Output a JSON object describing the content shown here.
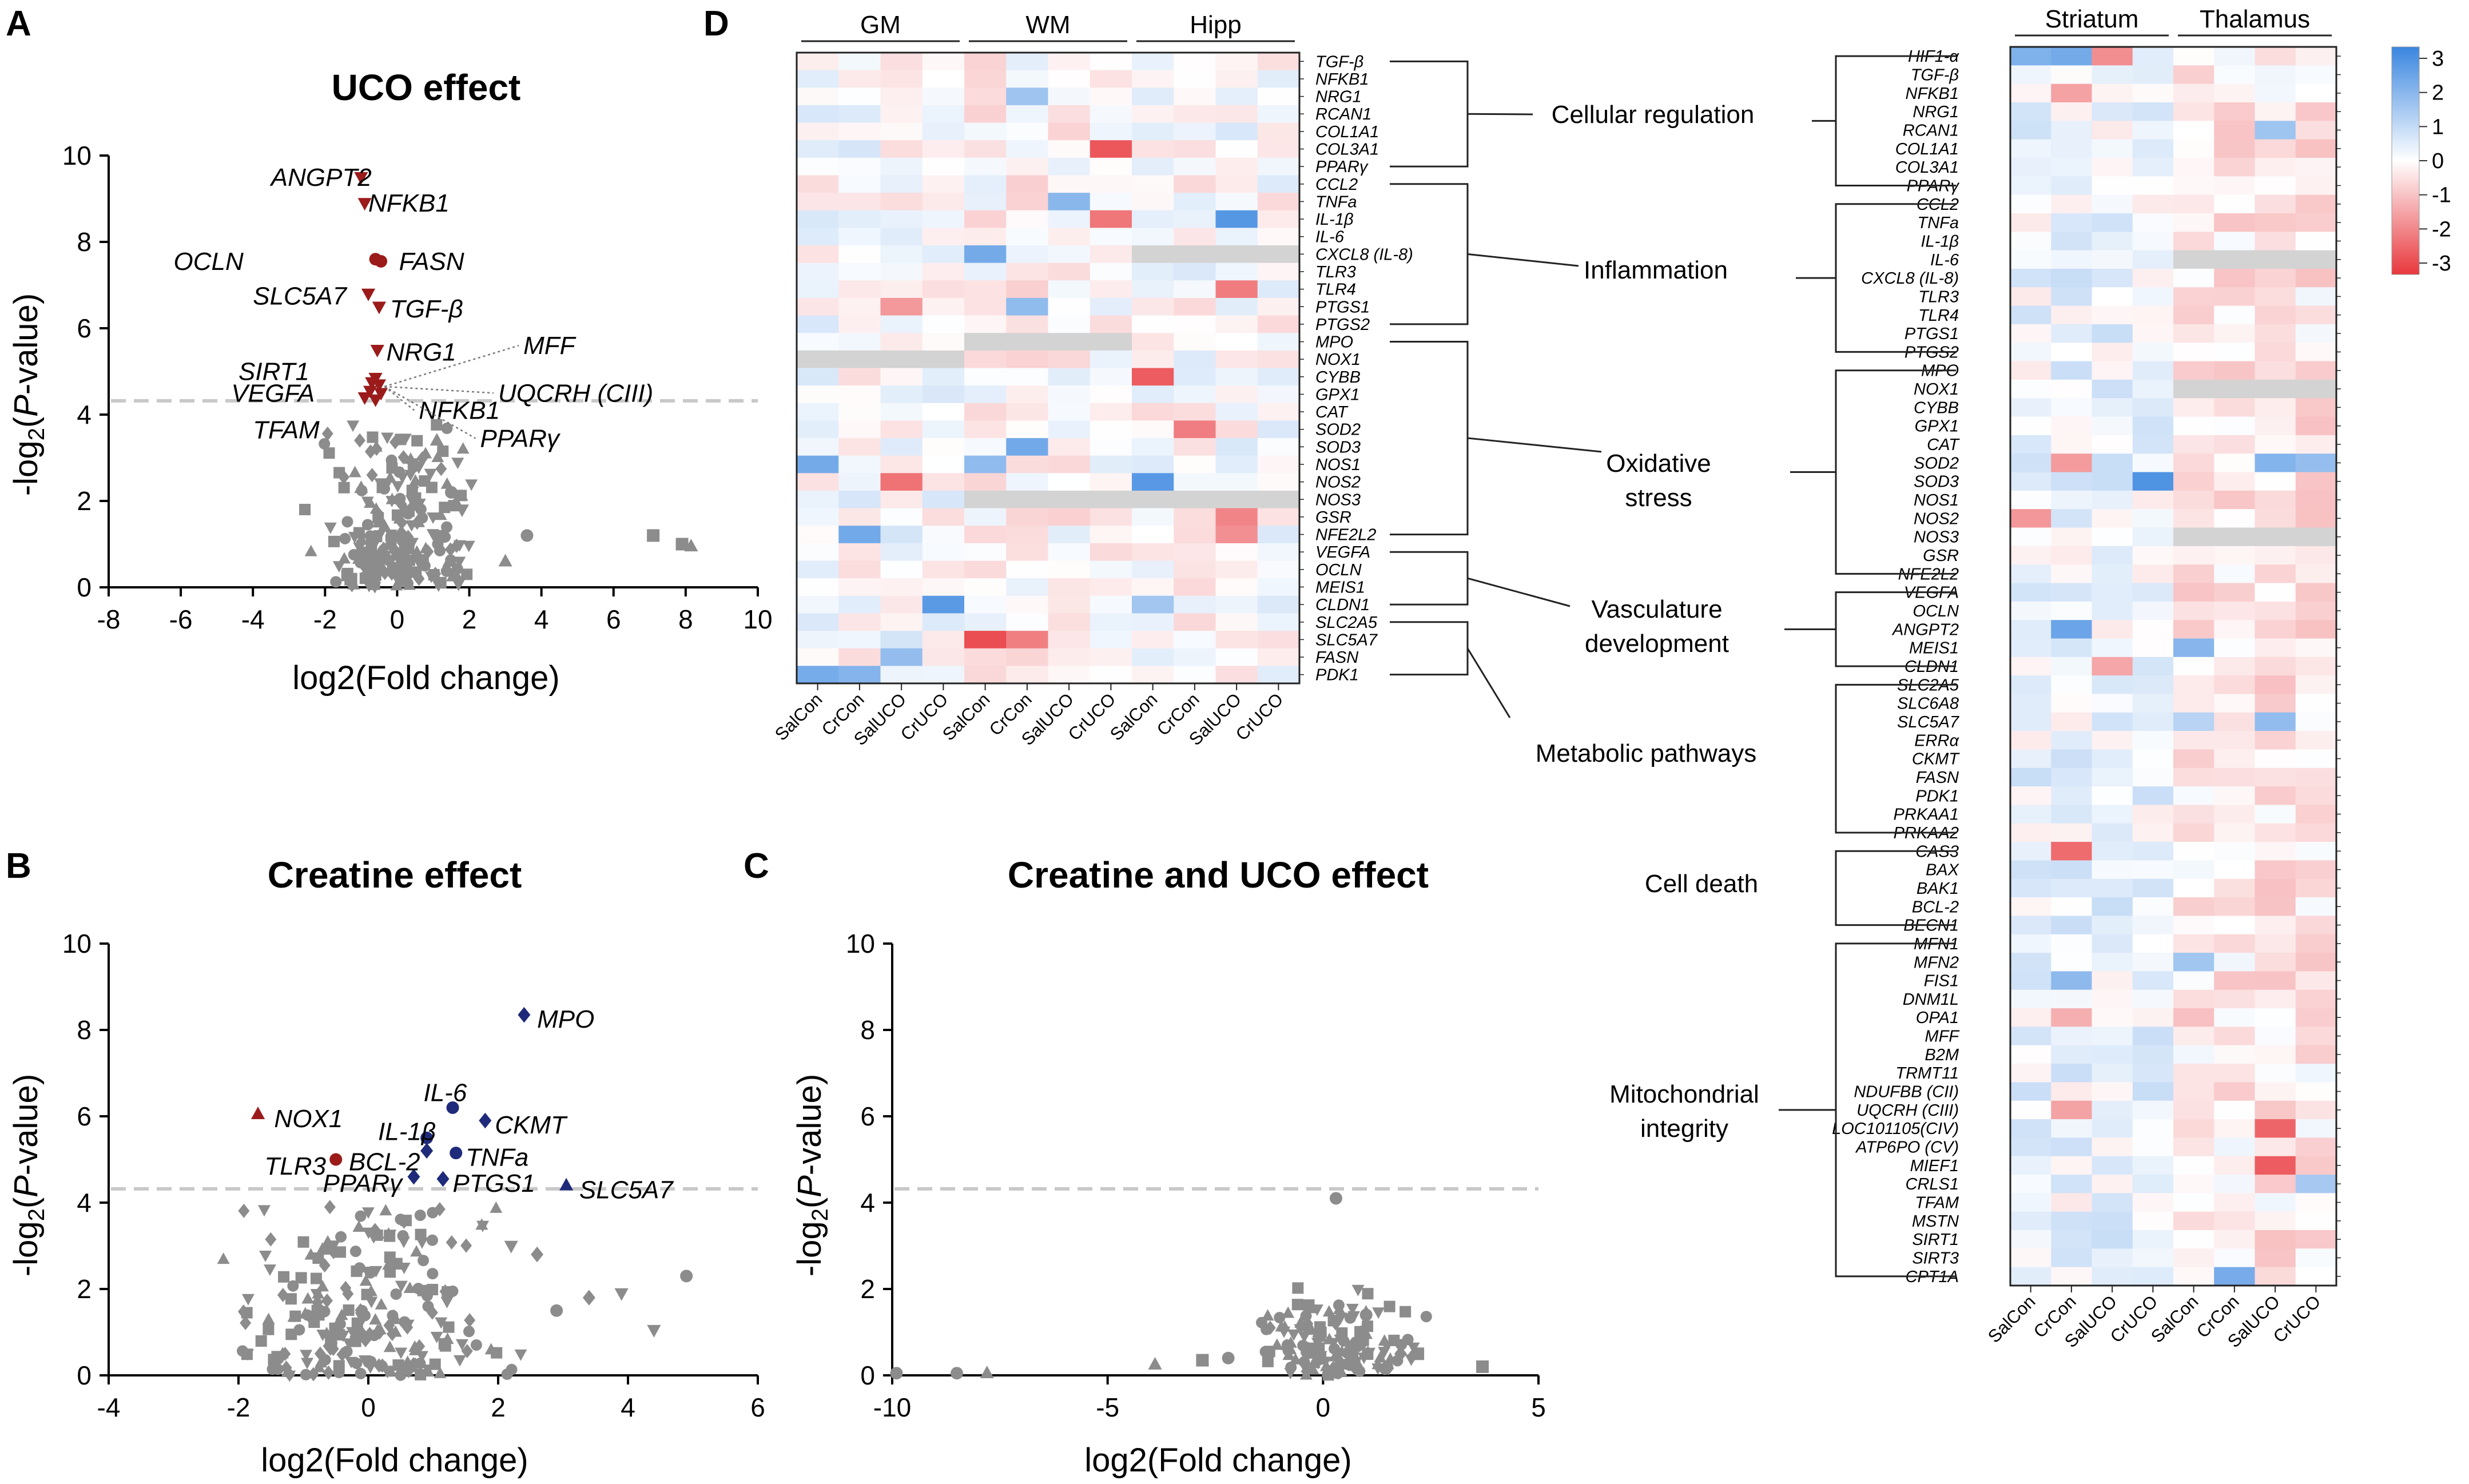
{
  "panels": {
    "A": {
      "label": "A",
      "title": "UCO effect",
      "xlabel": "log2(Fold change)",
      "ylabel_pre": "-log",
      "ylabel_sub": "2",
      "ylabel_mid": "(",
      "ylabel_p": "P",
      "ylabel_post": "-value)"
    },
    "B": {
      "label": "B",
      "title": "Creatine effect",
      "xlabel": "log2(Fold change)",
      "ylabel_pre": "-log",
      "ylabel_sub": "2",
      "ylabel_mid": "(",
      "ylabel_p": "P",
      "ylabel_post": "-value)"
    },
    "C": {
      "label": "C",
      "title": "Creatine and UCO effect",
      "xlabel": "log2(Fold change)",
      "ylabel_pre": "-log",
      "ylabel_sub": "2",
      "ylabel_mid": "(",
      "ylabel_p": "P",
      "ylabel_post": "-value)"
    },
    "D": {
      "label": "D"
    }
  },
  "colors": {
    "up": "#9b1b1b",
    "creat": "#1f2a7a",
    "gray": "#8c8c8c",
    "thresh": "#c8c8c8",
    "nan": "#d3d3d3",
    "neg": "#e8383d",
    "pos": "#3a86e0"
  },
  "chart_data": [
    {
      "id": "A",
      "type": "scatter",
      "title": "UCO effect",
      "xlabel": "log2(Fold change)",
      "ylabel": "-log2(P-value)",
      "xlim": [
        -8,
        10
      ],
      "ylim": [
        0,
        10
      ],
      "xticks": [
        "-8",
        "-6",
        "-4",
        "-2",
        "0",
        "2",
        "4",
        "6",
        "8",
        "10"
      ],
      "yticks": [
        "0",
        "2",
        "4",
        "6",
        "8",
        "10"
      ],
      "threshold": 4.32,
      "highlighted": [
        {
          "label": "ANGPT2",
          "x": -1.0,
          "y": 9.5,
          "shape": "tri-down"
        },
        {
          "label": "NFKB1",
          "x": -0.9,
          "y": 8.9,
          "shape": "tri-down"
        },
        {
          "label": "OCLN",
          "x": -0.6,
          "y": 7.6,
          "shape": "circle"
        },
        {
          "label": "FASN",
          "x": -0.45,
          "y": 7.55,
          "shape": "circle"
        },
        {
          "label": "SLC5A7",
          "x": -0.8,
          "y": 6.8,
          "shape": "tri-down"
        },
        {
          "label": "TGF-β",
          "x": -0.5,
          "y": 6.5,
          "shape": "tri-down"
        },
        {
          "label": "NRG1",
          "x": -0.55,
          "y": 5.5,
          "shape": "tri-down"
        },
        {
          "label": "MFF",
          "x": -0.6,
          "y": 4.85,
          "shape": "tri-down"
        },
        {
          "label": "SIRT1",
          "x": -0.7,
          "y": 4.75,
          "shape": "tri-down"
        },
        {
          "label": "UQCRH (CIII)",
          "x": -0.5,
          "y": 4.7,
          "shape": "tri-down"
        },
        {
          "label": "VEGFA",
          "x": -0.75,
          "y": 4.55,
          "shape": "tri-down"
        },
        {
          "label": "NFKB1",
          "x": -0.45,
          "y": 4.5,
          "shape": "tri-down"
        },
        {
          "label": "TFAM",
          "x": -0.9,
          "y": 4.4,
          "shape": "tri-down"
        },
        {
          "label": "PPARγ",
          "x": -0.6,
          "y": 4.35,
          "shape": "tri-down"
        }
      ],
      "labels": [
        {
          "text": "ANGPT2",
          "ax": -3.5,
          "ay": 9.5,
          "anchor": "start",
          "lead": false
        },
        {
          "text": "NFKB1",
          "ax": -0.8,
          "ay": 8.9,
          "anchor": "start",
          "lead": false
        },
        {
          "text": "OCLN",
          "ax": -6.2,
          "ay": 7.55,
          "anchor": "start",
          "lead": false
        },
        {
          "text": "FASN",
          "ax": 0.05,
          "ay": 7.55,
          "anchor": "start",
          "lead": false
        },
        {
          "text": "SLC5A7",
          "ax": -4.0,
          "ay": 6.75,
          "anchor": "start",
          "lead": false
        },
        {
          "text": "TGF-β",
          "ax": -0.2,
          "ay": 6.45,
          "anchor": "start",
          "lead": false
        },
        {
          "text": "NRG1",
          "ax": -0.3,
          "ay": 5.45,
          "anchor": "start",
          "lead": false
        },
        {
          "text": "MFF",
          "ax": 3.5,
          "ay": 5.6,
          "anchor": "start",
          "lead": true
        },
        {
          "text": "SIRT1",
          "ax": -4.4,
          "ay": 5.0,
          "anchor": "start",
          "lead": false
        },
        {
          "text": "UQCRH (CIII)",
          "ax": 2.8,
          "ay": 4.5,
          "anchor": "start",
          "lead": true
        },
        {
          "text": "VEGFA",
          "ax": -4.6,
          "ay": 4.5,
          "anchor": "start",
          "lead": false
        },
        {
          "text": "NFKB1",
          "ax": 0.6,
          "ay": 4.1,
          "anchor": "start",
          "lead": true
        },
        {
          "text": "TFAM",
          "ax": -4.0,
          "ay": 3.65,
          "anchor": "start",
          "lead": false
        },
        {
          "text": "PPARγ",
          "ax": 2.3,
          "ay": 3.45,
          "anchor": "start",
          "lead": true
        }
      ],
      "background": [
        [
          7.1,
          1.2
        ],
        [
          7.9,
          1.0
        ],
        [
          8.15,
          0.95
        ],
        [
          3.0,
          0.6
        ],
        [
          3.6,
          1.2
        ],
        [
          1.8,
          1.8
        ],
        [
          1.5,
          2.2
        ],
        [
          1.1,
          3.4
        ],
        [
          -1.0,
          2.3
        ],
        [
          0.6,
          2.8
        ]
      ]
    },
    {
      "id": "B",
      "type": "scatter",
      "title": "Creatine effect",
      "xlabel": "log2(Fold change)",
      "ylabel": "-log2(P-value)",
      "xlim": [
        -4,
        6
      ],
      "ylim": [
        0,
        10
      ],
      "xticks": [
        "-4",
        "-2",
        "0",
        "2",
        "4",
        "6"
      ],
      "yticks": [
        "0",
        "2",
        "4",
        "6",
        "8",
        "10"
      ],
      "threshold": 4.32,
      "highlighted": [
        {
          "label": "MPO",
          "x": 2.4,
          "y": 8.35,
          "shape": "diamond",
          "group": "creat"
        },
        {
          "label": "NOX1",
          "x": -1.7,
          "y": 6.05,
          "shape": "tri-up",
          "group": "up"
        },
        {
          "label": "IL-6",
          "x": 1.3,
          "y": 6.2,
          "shape": "circle",
          "group": "creat"
        },
        {
          "label": "CKMT",
          "x": 1.8,
          "y": 5.9,
          "shape": "diamond",
          "group": "creat"
        },
        {
          "label": "IL-1β",
          "x": 0.9,
          "y": 5.5,
          "shape": "circle",
          "group": "creat"
        },
        {
          "label": "TLR3",
          "x": -0.5,
          "y": 5.0,
          "shape": "circle",
          "group": "up"
        },
        {
          "label": "BCL-2",
          "x": 0.9,
          "y": 5.2,
          "shape": "diamond",
          "group": "creat"
        },
        {
          "label": "TNFa",
          "x": 1.35,
          "y": 5.15,
          "shape": "circle",
          "group": "creat"
        },
        {
          "label": "PPARγ",
          "x": 0.7,
          "y": 4.6,
          "shape": "diamond",
          "group": "creat"
        },
        {
          "label": "PTGS1",
          "x": 1.15,
          "y": 4.55,
          "shape": "diamond",
          "group": "creat"
        },
        {
          "label": "SLC5A7",
          "x": 3.05,
          "y": 4.4,
          "shape": "tri-up",
          "group": "creat"
        }
      ],
      "labels": [
        {
          "text": "MPO",
          "ax": 2.6,
          "ay": 8.25
        },
        {
          "text": "NOX1",
          "ax": -1.45,
          "ay": 5.95
        },
        {
          "text": "IL-6",
          "ax": 0.85,
          "ay": 6.55
        },
        {
          "text": "CKMT",
          "ax": 1.95,
          "ay": 5.8
        },
        {
          "text": "IL-1β",
          "ax": 0.15,
          "ay": 5.65
        },
        {
          "text": "TLR3",
          "ax": -1.6,
          "ay": 4.85
        },
        {
          "text": "BCL-2",
          "ax": -0.3,
          "ay": 4.95
        },
        {
          "text": "TNFa",
          "ax": 1.5,
          "ay": 5.05
        },
        {
          "text": "PPARγ",
          "ax": -0.7,
          "ay": 4.45
        },
        {
          "text": "PTGS1",
          "ax": 1.3,
          "ay": 4.45
        },
        {
          "text": "SLC5A7",
          "ax": 3.25,
          "ay": 4.3
        }
      ],
      "background": [
        [
          4.4,
          1.05
        ],
        [
          4.9,
          2.3
        ],
        [
          3.9,
          1.9
        ],
        [
          3.4,
          1.8
        ],
        [
          2.9,
          1.5
        ],
        [
          2.6,
          2.8
        ],
        [
          2.2,
          3.0
        ]
      ]
    },
    {
      "id": "C",
      "type": "scatter",
      "title": "Creatine and UCO effect",
      "xlabel": "log2(Fold change)",
      "ylabel": "-log2(P-value)",
      "xlim": [
        -10,
        5
      ],
      "ylim": [
        0,
        10
      ],
      "xticks": [
        "-10",
        "-5",
        "0",
        "5"
      ],
      "yticks": [
        "0",
        "2",
        "4",
        "6",
        "8",
        "10"
      ],
      "threshold": 4.32,
      "highlighted": [],
      "background": [
        [
          -9.9,
          0.05
        ],
        [
          -8.5,
          0.05
        ],
        [
          -7.8,
          0.05
        ],
        [
          -3.9,
          0.25
        ],
        [
          -2.2,
          0.4
        ],
        [
          -2.8,
          0.35
        ],
        [
          3.7,
          0.2
        ],
        [
          2.2,
          0.5
        ],
        [
          1.8,
          0.5
        ],
        [
          0.3,
          4.1
        ],
        [
          1.0,
          1.4
        ]
      ]
    },
    {
      "id": "D",
      "type": "heatmap",
      "colorscale": {
        "min": -3,
        "max": 3,
        "ticks": [
          "3",
          "2",
          "1",
          "0",
          "-1",
          "-2",
          "-3"
        ]
      },
      "heatmap1": {
        "regions": [
          "GM",
          "WM",
          "Hipp"
        ],
        "columns": [
          "SalCon",
          "CrCon",
          "SalUCO",
          "CrUCO",
          "SalCon",
          "CrCon",
          "SalUCO",
          "CrUCO",
          "SalCon",
          "CrCon",
          "SalUCO",
          "CrUCO"
        ],
        "genes": [
          "TGF-β",
          "NFKB1",
          "NRG1",
          "RCAN1",
          "COL1A1",
          "COL3A1",
          "PPARγ",
          "CCL2",
          "TNFa",
          "IL-1β",
          "IL-6",
          "CXCL8 (IL-8)",
          "TLR3",
          "TLR4",
          "PTGS1",
          "PTGS2",
          "MPO",
          "NOX1",
          "CYBB",
          "GPX1",
          "CAT",
          "SOD2",
          "SOD3",
          "NOS1",
          "NOS2",
          "NOS3",
          "GSR",
          "NFE2L2",
          "VEGFA",
          "OCLN",
          "MEIS1",
          "CLDN1",
          "SLC2A5",
          "SLC5A7",
          "FASN",
          "PDK1"
        ],
        "categories": [
          {
            "name": "Cellular regulation",
            "from": "TGF-β",
            "to": "PPARγ"
          },
          {
            "name": "Inflammation",
            "from": "CCL2",
            "to": "PTGS2"
          },
          {
            "name": "Oxidative stress",
            "from": "MPO",
            "to": "NFE2L2"
          },
          {
            "name": "Vasculature development",
            "from": "VEGFA",
            "to": "CLDN1"
          },
          {
            "name": "Metabolic pathways",
            "from": "SLC2A5",
            "to": "PDK1"
          }
        ]
      },
      "heatmap2": {
        "regions": [
          "Striatum",
          "Thalamus"
        ],
        "columns": [
          "SalCon",
          "CrCon",
          "SalUCO",
          "CrUCO",
          "SalCon",
          "CrCon",
          "SalUCO",
          "CrUCO"
        ],
        "genes": [
          "HIF1-α",
          "TGF-β",
          "NFKB1",
          "NRG1",
          "RCAN1",
          "COL1A1",
          "COL3A1",
          "PPARγ",
          "CCL2",
          "TNFa",
          "IL-1β",
          "IL-6",
          "CXCL8 (IL-8)",
          "TLR3",
          "TLR4",
          "PTGS1",
          "PTGS2",
          "MPO",
          "NOX1",
          "CYBB",
          "GPX1",
          "CAT",
          "SOD2",
          "SOD3",
          "NOS1",
          "NOS2",
          "NOS3",
          "GSR",
          "NFE2L2",
          "VEGFA",
          "OCLN",
          "ANGPT2",
          "MEIS1",
          "CLDN1",
          "SLC2A5",
          "SLC6A8",
          "SLC5A7",
          "ERRα",
          "CKMT",
          "FASN",
          "PDK1",
          "PRKAA1",
          "PRKAA2",
          "CAS3",
          "BAX",
          "BAK1",
          "BCL-2",
          "BECN1",
          "MFN1",
          "MFN2",
          "FIS1",
          "DNM1L",
          "OPA1",
          "MFF",
          "B2M",
          "TRMT11",
          "NDUFBB (CII)",
          "UQCRH (CIII)",
          "LOC101105(CIV)",
          "ATP6PO (CV)",
          "MIEF1",
          "CRLS1",
          "TFAM",
          "MSTN",
          "SIRT1",
          "SIRT3",
          "CPT1A"
        ],
        "categories": [
          {
            "name": "Cellular regulation",
            "from": "HIF1-α",
            "to": "PPARγ"
          },
          {
            "name": "Inflammation",
            "from": "CCL2",
            "to": "PTGS2"
          },
          {
            "name": "Oxidative stress",
            "from": "MPO",
            "to": "NFE2L2"
          },
          {
            "name": "Vasculature development",
            "from": "VEGFA",
            "to": "CLDN1"
          },
          {
            "name": "Metabolic pathways",
            "from": "SLC2A5",
            "to": "PRKAA2"
          },
          {
            "name": "Cell death",
            "from": "CAS3",
            "to": "BECN1"
          },
          {
            "name": "Mitochondrial integrity",
            "from": "MFN1",
            "to": "CPT1A"
          }
        ]
      }
    }
  ]
}
